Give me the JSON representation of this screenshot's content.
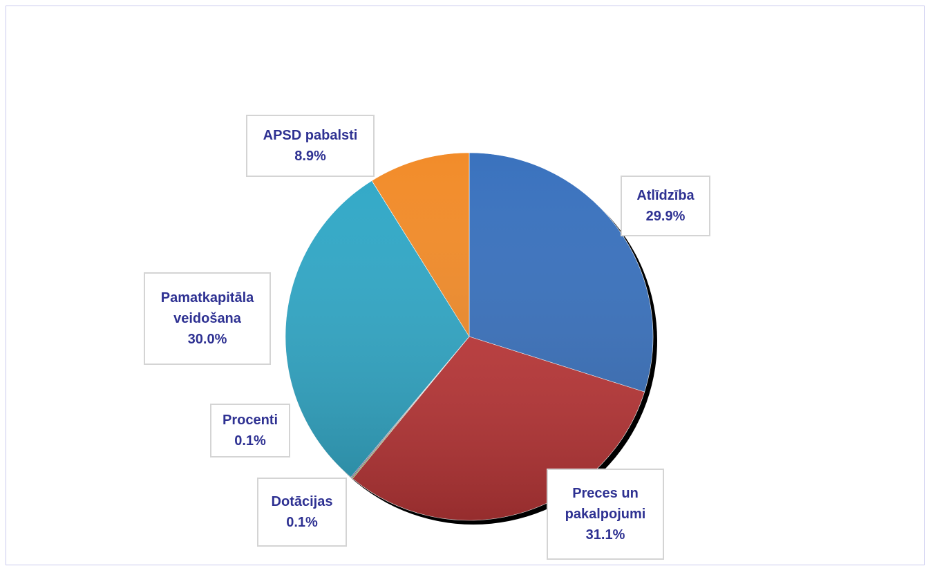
{
  "chart_data": {
    "type": "pie",
    "categories": [
      "Atlīdzība",
      "Preces un pakalpojumi",
      "Dotācijas",
      "Procenti",
      "Pamatkapitāla veidošana",
      "APSD pabalsti"
    ],
    "values": [
      29.9,
      31.1,
      0.1,
      0.1,
      30.0,
      8.9
    ],
    "value_labels": [
      "29.9%",
      "31.1%",
      "0.1%",
      "0.1%",
      "30.0%",
      "8.9%"
    ],
    "colors": [
      "#3a72be",
      "#c0393a",
      "#8db03f",
      "#7b5ea7",
      "#31a8c7",
      "#f28c2a"
    ]
  }
}
